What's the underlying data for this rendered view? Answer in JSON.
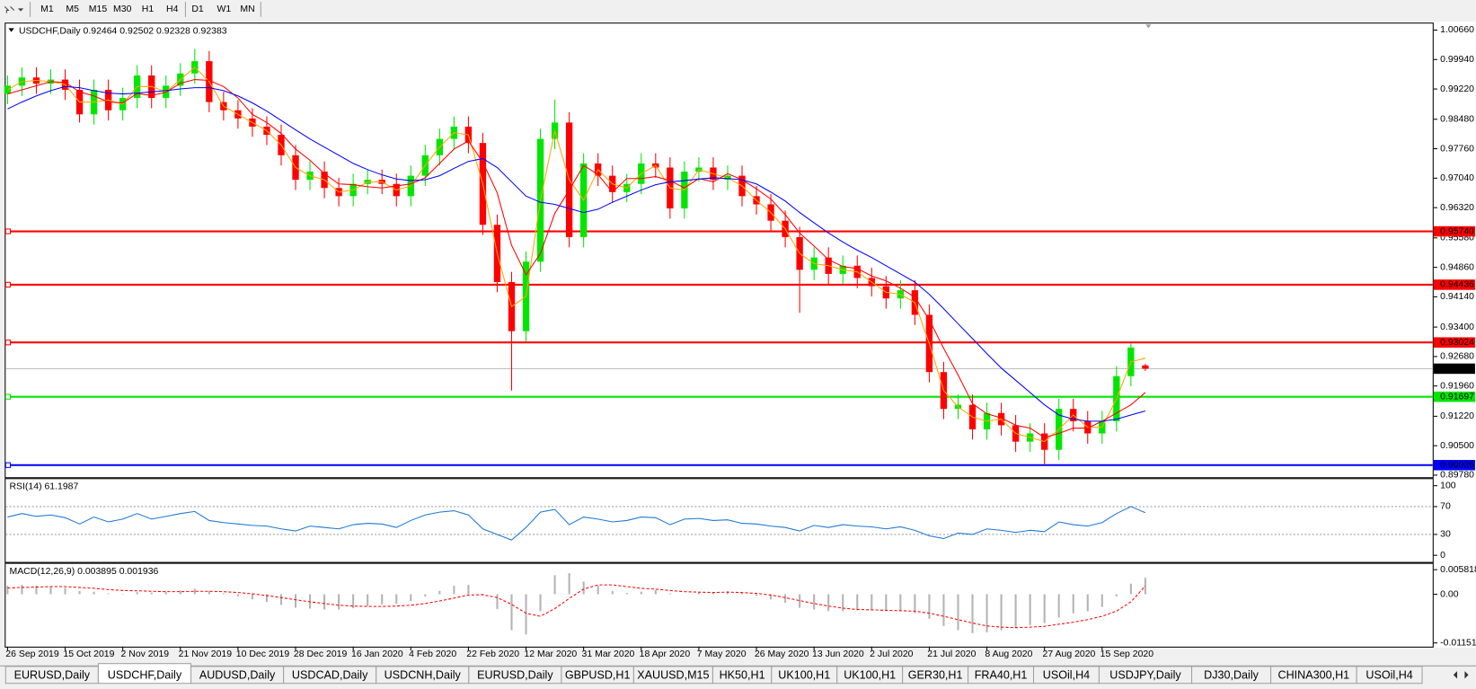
{
  "toolbar": {
    "timeframes": [
      "M1",
      "M5",
      "M15",
      "M30",
      "H1",
      "H4",
      "D1",
      "W1",
      "MN"
    ]
  },
  "chart_data": [
    {
      "type": "candlestick",
      "title": "USDCHF,Daily  0.92464 0.92502 0.92328 0.92383",
      "categories": [
        "26 Sep 2019",
        null,
        null,
        null,
        "15 Oct 2019",
        null,
        null,
        null,
        "2 Nov 2019",
        null,
        null,
        null,
        "21 Nov 2019",
        null,
        null,
        null,
        "10 Dec 2019",
        null,
        null,
        null,
        "28 Dec 2019",
        null,
        null,
        null,
        "16 Jan 2020",
        null,
        null,
        null,
        "4 Feb 2020",
        null,
        null,
        null,
        "22 Feb 2020",
        null,
        null,
        null,
        "12 Mar 2020",
        null,
        null,
        null,
        "31 Mar 2020",
        null,
        null,
        null,
        "18 Apr 2020",
        null,
        null,
        null,
        "7 May 2020",
        null,
        null,
        null,
        "26 May 2020",
        null,
        null,
        null,
        "13 Jun 2020",
        null,
        null,
        null,
        "2 Jul 2020",
        null,
        null,
        null,
        "21 Jul 2020",
        null,
        null,
        null,
        "8 Aug 2020",
        null,
        null,
        null,
        "27 Aug 2020",
        null,
        null,
        null,
        "15 Sep 2020",
        null,
        null,
        null
      ],
      "open": [
        0.991,
        0.993,
        0.995,
        0.9935,
        0.9945,
        0.992,
        0.986,
        0.992,
        0.987,
        0.99,
        0.9955,
        0.99,
        0.993,
        0.996,
        0.999,
        0.989,
        0.987,
        0.985,
        0.983,
        0.981,
        0.976,
        0.97,
        0.972,
        0.968,
        0.966,
        0.969,
        0.97,
        0.969,
        0.966,
        0.971,
        0.976,
        0.98,
        0.983,
        0.979,
        0.959,
        0.945,
        0.933,
        0.95,
        0.98,
        0.984,
        0.956,
        0.974,
        0.971,
        0.967,
        0.969,
        0.974,
        0.973,
        0.963,
        0.972,
        0.973,
        0.97,
        0.971,
        0.966,
        0.964,
        0.96,
        0.956,
        0.948,
        0.951,
        0.947,
        0.949,
        0.946,
        0.944,
        0.941,
        0.943,
        0.937,
        0.923,
        0.914,
        0.915,
        0.909,
        0.913,
        0.91,
        0.906,
        0.908,
        0.904,
        0.914,
        0.911,
        0.908,
        0.911,
        0.922,
        0.92464
      ],
      "high": [
        0.9955,
        0.9975,
        0.9975,
        0.997,
        0.997,
        0.9945,
        0.9945,
        0.9945,
        0.9925,
        0.998,
        0.998,
        0.9955,
        0.9985,
        1.002,
        1.0015,
        0.9915,
        0.9895,
        0.9875,
        0.9855,
        0.9835,
        0.9785,
        0.9745,
        0.9745,
        0.9705,
        0.9715,
        0.9725,
        0.9725,
        0.9715,
        0.9735,
        0.9785,
        0.9825,
        0.9855,
        0.9855,
        0.9815,
        0.9615,
        0.9475,
        0.9525,
        0.9825,
        0.9896,
        0.9865,
        0.9765,
        0.9765,
        0.9735,
        0.9715,
        0.9765,
        0.9765,
        0.9755,
        0.9745,
        0.9755,
        0.9755,
        0.9735,
        0.9735,
        0.9685,
        0.9665,
        0.9625,
        0.9585,
        0.9535,
        0.9535,
        0.9515,
        0.9515,
        0.9485,
        0.9465,
        0.9455,
        0.9455,
        0.9395,
        0.9255,
        0.9175,
        0.9175,
        0.9155,
        0.9155,
        0.9125,
        0.9105,
        0.9105,
        0.9165,
        0.9165,
        0.9135,
        0.9135,
        0.9245,
        0.93,
        0.92502
      ],
      "low": [
        0.9885,
        0.9905,
        0.991,
        0.991,
        0.9895,
        0.984,
        0.9835,
        0.9845,
        0.9845,
        0.9875,
        0.9875,
        0.9875,
        0.9905,
        0.9935,
        0.9865,
        0.9845,
        0.9825,
        0.9805,
        0.9785,
        0.9735,
        0.9675,
        0.9675,
        0.9655,
        0.9635,
        0.9635,
        0.9665,
        0.9665,
        0.9635,
        0.9635,
        0.9685,
        0.9735,
        0.9775,
        0.9765,
        0.9565,
        0.9425,
        0.9185,
        0.9305,
        0.9475,
        0.9775,
        0.9535,
        0.9535,
        0.9685,
        0.9645,
        0.9645,
        0.9665,
        0.9705,
        0.9605,
        0.9605,
        0.9695,
        0.9675,
        0.9675,
        0.9635,
        0.9615,
        0.9575,
        0.9535,
        0.9375,
        0.9455,
        0.9445,
        0.9445,
        0.9435,
        0.9415,
        0.9385,
        0.9385,
        0.9345,
        0.9205,
        0.9115,
        0.9115,
        0.9065,
        0.9065,
        0.9075,
        0.9035,
        0.9035,
        0.9003,
        0.9015,
        0.9085,
        0.9055,
        0.9055,
        0.9085,
        0.9195,
        0.92328
      ],
      "close": [
        0.993,
        0.995,
        0.9935,
        0.9945,
        0.992,
        0.986,
        0.992,
        0.987,
        0.99,
        0.9955,
        0.99,
        0.993,
        0.996,
        0.999,
        0.989,
        0.987,
        0.985,
        0.983,
        0.981,
        0.976,
        0.97,
        0.972,
        0.968,
        0.966,
        0.969,
        0.97,
        0.969,
        0.966,
        0.971,
        0.976,
        0.98,
        0.983,
        0.979,
        0.959,
        0.945,
        0.933,
        0.95,
        0.98,
        0.984,
        0.956,
        0.974,
        0.971,
        0.967,
        0.969,
        0.974,
        0.973,
        0.963,
        0.972,
        0.973,
        0.97,
        0.971,
        0.966,
        0.964,
        0.96,
        0.956,
        0.948,
        0.951,
        0.947,
        0.949,
        0.946,
        0.944,
        0.941,
        0.943,
        0.937,
        0.923,
        0.914,
        0.915,
        0.909,
        0.913,
        0.91,
        0.906,
        0.908,
        0.904,
        0.914,
        0.911,
        0.908,
        0.911,
        0.922,
        0.929,
        0.92383
      ],
      "bull_color": "#00e600",
      "bear_color": "#ff0000",
      "lines": [
        {
          "color": "#ffa500",
          "values": [
            0.992,
            0.994,
            0.9943,
            0.994,
            0.9933,
            0.989,
            0.989,
            0.9895,
            0.9885,
            0.9928,
            0.9928,
            0.9915,
            0.9945,
            0.9975,
            0.994,
            0.988,
            0.986,
            0.984,
            0.982,
            0.9785,
            0.973,
            0.971,
            0.97,
            0.967,
            0.9675,
            0.9695,
            0.9695,
            0.9675,
            0.9685,
            0.9735,
            0.978,
            0.9815,
            0.981,
            0.969,
            0.952,
            0.939,
            0.9415,
            0.965,
            0.982,
            0.97,
            0.965,
            0.9725,
            0.969,
            0.968,
            0.9715,
            0.9735,
            0.968,
            0.9675,
            0.9725,
            0.9715,
            0.9705,
            0.9685,
            0.965,
            0.962,
            0.958,
            0.952,
            0.9495,
            0.949,
            0.948,
            0.9475,
            0.945,
            0.9425,
            0.942,
            0.94,
            0.93,
            0.9185,
            0.9145,
            0.912,
            0.911,
            0.9115,
            0.908,
            0.907,
            0.906,
            0.909,
            0.9125,
            0.9095,
            0.9095,
            0.9165,
            0.9255,
            0.9264
          ]
        },
        {
          "color": "#ff0000",
          "values": [
            0.991,
            0.992,
            0.993,
            0.994,
            0.9938,
            0.9915,
            0.9905,
            0.989,
            0.9888,
            0.9911,
            0.9906,
            0.9914,
            0.9936,
            0.9945,
            0.9943,
            0.9928,
            0.99,
            0.986,
            0.984,
            0.9813,
            0.9775,
            0.9748,
            0.9715,
            0.969,
            0.9688,
            0.9683,
            0.968,
            0.9685,
            0.969,
            0.9705,
            0.974,
            0.9775,
            0.9795,
            0.9743,
            0.9668,
            0.954,
            0.9468,
            0.952,
            0.9618,
            0.9675,
            0.9735,
            0.9713,
            0.967,
            0.9703,
            0.9703,
            0.9708,
            0.9698,
            0.968,
            0.9703,
            0.9695,
            0.9715,
            0.97,
            0.9678,
            0.9653,
            0.9615,
            0.957,
            0.9538,
            0.9505,
            0.9488,
            0.9483,
            0.9465,
            0.9453,
            0.9435,
            0.9413,
            0.9358,
            0.9288,
            0.9223,
            0.9153,
            0.9128,
            0.9118,
            0.91,
            0.9093,
            0.907,
            0.908,
            0.9093,
            0.9093,
            0.911,
            0.913,
            0.915,
            0.918
          ]
        },
        {
          "color": "#0000ff",
          "values": [
            0.9873,
            0.989,
            0.9905,
            0.9918,
            0.9928,
            0.9925,
            0.9918,
            0.9912,
            0.991,
            0.9912,
            0.9915,
            0.9918,
            0.9922,
            0.9925,
            0.9925,
            0.9918,
            0.9905,
            0.9888,
            0.9868,
            0.9845,
            0.9822,
            0.98,
            0.978,
            0.976,
            0.974,
            0.9725,
            0.9712,
            0.9702,
            0.9698,
            0.97,
            0.971,
            0.9728,
            0.9745,
            0.9752,
            0.973,
            0.9695,
            0.966,
            0.9645,
            0.964,
            0.963,
            0.962,
            0.9628,
            0.9645,
            0.966,
            0.9675,
            0.9688,
            0.9695,
            0.9698,
            0.9702,
            0.9705,
            0.9703,
            0.97,
            0.969,
            0.967,
            0.9648,
            0.962,
            0.9595,
            0.957,
            0.9548,
            0.9528,
            0.951,
            0.949,
            0.947,
            0.945,
            0.942,
            0.9385,
            0.9348,
            0.9312,
            0.9275,
            0.924,
            0.921,
            0.918,
            0.915,
            0.9125,
            0.9115,
            0.911,
            0.911,
            0.9115,
            0.9125,
            0.9135
          ]
        }
      ],
      "ylim": [
        0.8973,
        1.0082
      ],
      "yticks": [
        {
          "value": 1.0066,
          "label": "1.00660"
        },
        {
          "value": 0.9994,
          "label": "0.99940"
        },
        {
          "value": 0.9922,
          "label": "0.99220"
        },
        {
          "value": 0.9848,
          "label": "0.98480"
        },
        {
          "value": 0.9776,
          "label": "0.97760"
        },
        {
          "value": 0.9704,
          "label": "0.97040"
        },
        {
          "value": 0.9632,
          "label": "0.96320"
        },
        {
          "value": 0.9558,
          "label": "0.95580"
        },
        {
          "value": 0.9486,
          "label": "0.94860"
        },
        {
          "value": 0.9414,
          "label": "0.94140"
        },
        {
          "value": 0.934,
          "label": "0.93400"
        },
        {
          "value": 0.9268,
          "label": "0.92680"
        },
        {
          "value": 0.9196,
          "label": "0.91960"
        },
        {
          "value": 0.9122,
          "label": "0.91220"
        },
        {
          "value": 0.905,
          "label": "0.90500"
        },
        {
          "value": 0.8978,
          "label": "0.89780"
        }
      ],
      "levels": [
        {
          "value": 0.9574,
          "label": "0.95740",
          "color": "#ff0000"
        },
        {
          "value": 0.94436,
          "label": "0.94436",
          "color": "#ff0000"
        },
        {
          "value": 0.93024,
          "label": "0.93024",
          "color": "#ff0000"
        },
        {
          "value": 0.91697,
          "label": "0.91697",
          "color": "#00e600"
        },
        {
          "value": 0.90026,
          "label": "0.90026",
          "color": "#0000ff"
        }
      ],
      "price_line": {
        "value": 0.92383,
        "label": "0.92383"
      }
    },
    {
      "type": "line",
      "title": "RSI(14) 61.1987",
      "color": "#1e78d6",
      "values": [
        55,
        60,
        56,
        58,
        54,
        45,
        55,
        48,
        52,
        60,
        52,
        56,
        60,
        63,
        50,
        47,
        45,
        43,
        42,
        38,
        35,
        42,
        40,
        38,
        44,
        46,
        45,
        40,
        50,
        58,
        62,
        64,
        58,
        38,
        30,
        22,
        40,
        62,
        66,
        44,
        55,
        52,
        48,
        50,
        55,
        54,
        44,
        52,
        53,
        50,
        51,
        46,
        45,
        42,
        40,
        35,
        43,
        40,
        44,
        42,
        41,
        38,
        41,
        36,
        28,
        24,
        32,
        30,
        38,
        36,
        33,
        36,
        34,
        48,
        44,
        42,
        47,
        60,
        70,
        61.1987
      ],
      "ylim": [
        -9.5,
        109.5
      ],
      "yticks": [
        100,
        70,
        30,
        0
      ],
      "levels": [
        70,
        30
      ]
    },
    {
      "type": "macd",
      "title": "MACD(12,26,9) 0.003895 0.001936",
      "color": "#b4b4b4",
      "signal_color": "#ff0000",
      "values": [
        0.002,
        0.0022,
        0.002,
        0.0019,
        0.0015,
        0.0008,
        0.0006,
        0.0002,
        0.0001,
        0.0005,
        0.0004,
        0.0005,
        0.0009,
        0.0013,
        0.0008,
        0.0002,
        -0.0005,
        -0.0012,
        -0.0018,
        -0.0025,
        -0.0032,
        -0.0034,
        -0.0036,
        -0.0036,
        -0.0033,
        -0.0028,
        -0.0024,
        -0.0022,
        -0.0016,
        -0.0005,
        0.0008,
        0.002,
        0.0022,
        0.0001,
        -0.0035,
        -0.0085,
        -0.0095,
        -0.004,
        0.0045,
        0.005,
        0.003,
        0.002,
        0.0008,
        0.0003,
        0.0006,
        0.001,
        0.0002,
        0.0,
        0.0004,
        0.0005,
        0.0007,
        0.0003,
        -0.0004,
        -0.0012,
        -0.002,
        -0.0032,
        -0.0036,
        -0.004,
        -0.004,
        -0.0038,
        -0.0038,
        -0.004,
        -0.004,
        -0.0045,
        -0.0058,
        -0.0075,
        -0.0085,
        -0.0092,
        -0.009,
        -0.0085,
        -0.008,
        -0.0073,
        -0.0068,
        -0.0055,
        -0.0045,
        -0.004,
        -0.003,
        -0.0005,
        0.0025,
        0.003895
      ],
      "signal": [
        0.0015,
        0.0016,
        0.0017,
        0.0018,
        0.0018,
        0.0016,
        0.0014,
        0.0011,
        0.0009,
        0.0008,
        0.0007,
        0.0006,
        0.0006,
        0.0007,
        0.0007,
        0.0006,
        0.0004,
        0.0001,
        -0.0003,
        -0.0008,
        -0.0013,
        -0.0018,
        -0.0022,
        -0.0026,
        -0.0028,
        -0.0029,
        -0.0029,
        -0.0028,
        -0.0026,
        -0.0022,
        -0.0016,
        -0.0009,
        -0.0002,
        -0.0001,
        -0.0008,
        -0.0024,
        -0.0045,
        -0.0052,
        -0.0034,
        -0.001,
        0.0012,
        0.0022,
        0.0022,
        0.0018,
        0.0014,
        0.0012,
        0.0009,
        0.0006,
        0.0005,
        0.0004,
        0.0005,
        0.0004,
        0.0002,
        -0.0002,
        -0.0008,
        -0.0015,
        -0.0022,
        -0.0028,
        -0.0033,
        -0.0036,
        -0.0037,
        -0.0038,
        -0.0039,
        -0.004,
        -0.0045,
        -0.0052,
        -0.006,
        -0.0068,
        -0.0075,
        -0.0078,
        -0.0079,
        -0.0078,
        -0.0076,
        -0.0071,
        -0.0066,
        -0.006,
        -0.0052,
        -0.004,
        -0.0018,
        0.001936
      ],
      "ylim": [
        -0.0124,
        0.0072
      ],
      "yticks": [
        0.005818,
        {
          "value": 0,
          "label": "0.00"
        },
        -0.011514
      ]
    }
  ],
  "tabs": {
    "items": [
      "EURUSD,Daily",
      "USDCHF,Daily",
      "AUDUSD,Daily",
      "USDCAD,Daily",
      "USDCNH,Daily",
      "EURUSD,Daily",
      "GBPUSD,H1",
      "XAUUSD,M15",
      "HK50,H1",
      "UK100,H1",
      "UK100,H1",
      "GER30,H1",
      "FRA40,H1",
      "USOil,H4",
      "USDJPY,Daily",
      "DJ30,Daily",
      "CHINA300,H1",
      "USOil,H4"
    ],
    "active": 1
  }
}
